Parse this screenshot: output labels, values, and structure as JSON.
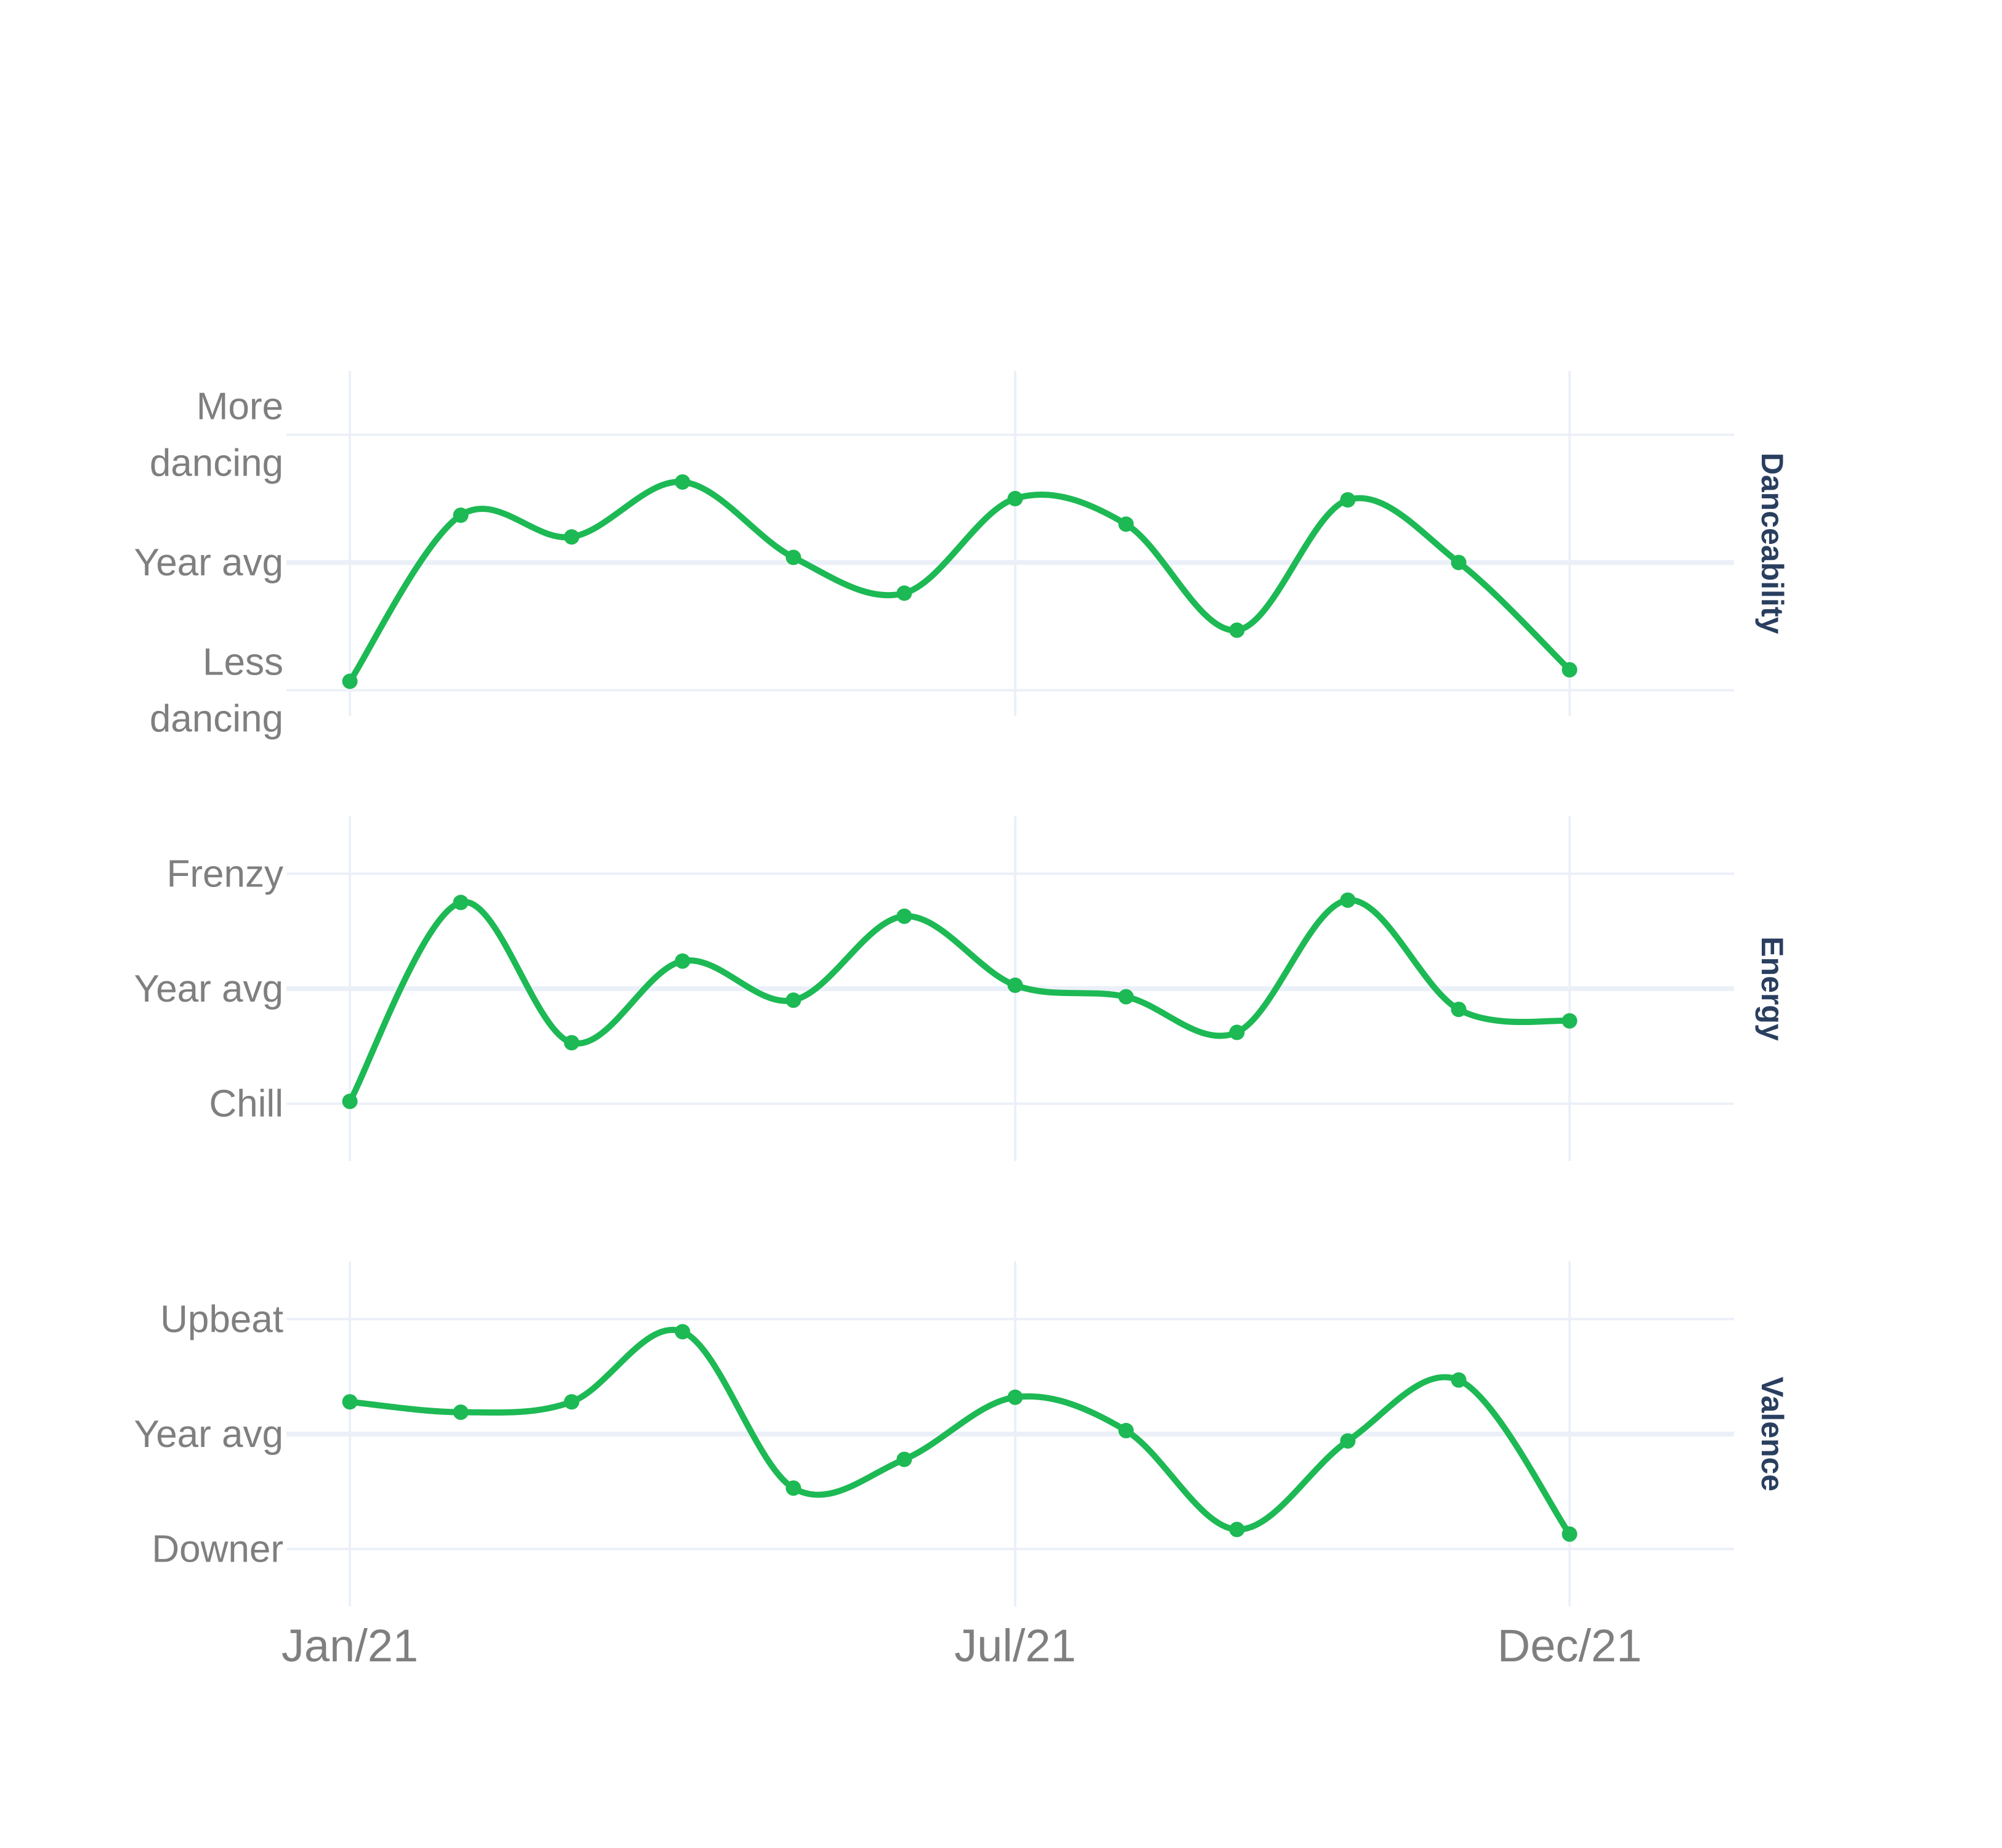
{
  "chart_data": {
    "type": "line",
    "x": [
      "Jan/21",
      "Feb/21",
      "Mar/21",
      "Apr/21",
      "May/21",
      "Jun/21",
      "Jul/21",
      "Aug/21",
      "Sep/21",
      "Oct/21",
      "Nov/21",
      "Dec/21"
    ],
    "xticks": [
      "Jan/21",
      "Jul/21",
      "Dec/21"
    ],
    "colors": {
      "line": "#1DB954",
      "grid": "#ebf0f8",
      "tick_text": "#7f7f7f",
      "strip_text": "#2a3f5f"
    },
    "grid": true,
    "legend": false,
    "panels": [
      {
        "name": "Danceability",
        "ylim": [
          -1.2,
          1.5
        ],
        "yticks": [
          {
            "value": -1,
            "label": "Less dancing"
          },
          {
            "value": 0,
            "label": "Year avg"
          },
          {
            "value": 1,
            "label": "More dancing"
          }
        ],
        "values": [
          -0.93,
          0.37,
          0.2,
          0.63,
          0.04,
          -0.24,
          0.5,
          0.3,
          -0.53,
          0.49,
          0.0,
          -0.84
        ]
      },
      {
        "name": "Energy",
        "ylim": [
          -1.5,
          1.5
        ],
        "yticks": [
          {
            "value": -1,
            "label": "Chill"
          },
          {
            "value": 0,
            "label": "Year avg"
          },
          {
            "value": 1,
            "label": "Frenzy"
          }
        ],
        "values": [
          -0.98,
          0.75,
          -0.47,
          0.24,
          -0.1,
          0.63,
          0.03,
          -0.07,
          -0.38,
          0.77,
          -0.18,
          -0.28
        ]
      },
      {
        "name": "Valence",
        "ylim": [
          -1.5,
          1.5
        ],
        "yticks": [
          {
            "value": -1,
            "label": "Downer"
          },
          {
            "value": 0,
            "label": "Year avg"
          },
          {
            "value": 1,
            "label": "Upbeat"
          }
        ],
        "values": [
          0.28,
          0.19,
          0.28,
          0.89,
          -0.47,
          -0.22,
          0.32,
          0.03,
          -0.83,
          -0.06,
          0.47,
          -0.87
        ]
      }
    ]
  }
}
